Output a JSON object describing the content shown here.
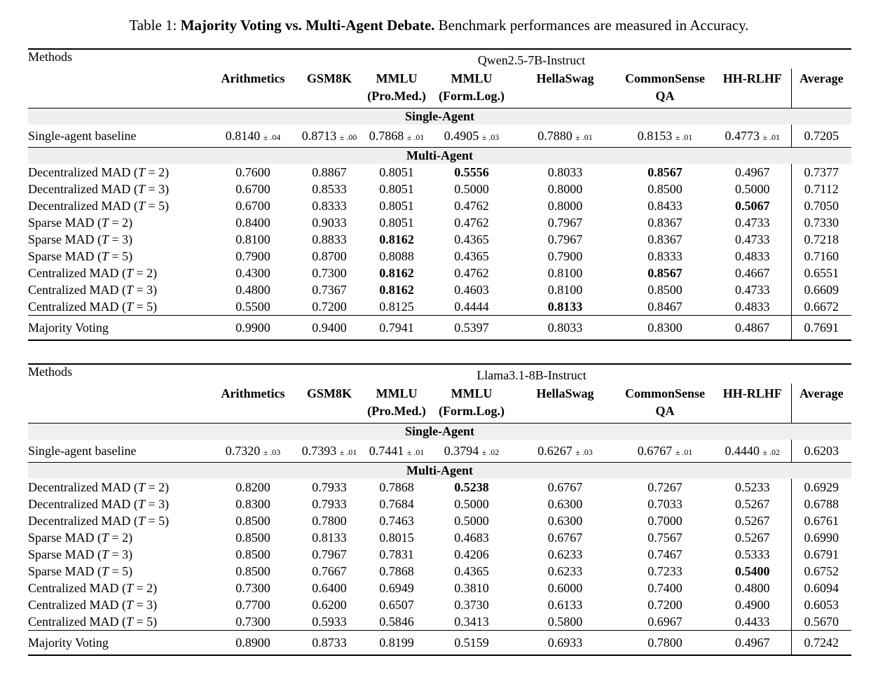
{
  "page": {
    "background": "#ffffff",
    "text_color": "#000000",
    "section_band_color": "#efefef"
  },
  "caption": {
    "prefix": "Table 1: ",
    "bold": "Majority Voting vs. Multi-Agent Debate.",
    "rest": " Benchmark performances are measured in Accuracy."
  },
  "header": {
    "methods_label": "Methods",
    "benchmarks": [
      [
        "Arithmetics"
      ],
      [
        "GSM8K"
      ],
      [
        "MMLU",
        "(Pro.Med.)"
      ],
      [
        "MMLU",
        "(Form.Log.)"
      ],
      [
        "HellaSwag"
      ],
      [
        "CommonSense",
        "QA"
      ],
      [
        "HH-RLHF"
      ]
    ],
    "average_label": "Average"
  },
  "section_labels": {
    "single_agent": "Single-Agent",
    "multi_agent": "Multi-Agent"
  },
  "tables": [
    {
      "model": "Qwen2.5-7B-Instruct",
      "baseline": {
        "label": "Single-agent baseline",
        "values": [
          {
            "v": "0.8140",
            "pm": "± .04"
          },
          {
            "v": "0.8713",
            "pm": "± .00"
          },
          {
            "v": "0.7868",
            "pm": "± .01"
          },
          {
            "v": "0.4905",
            "pm": "± .03"
          },
          {
            "v": "0.7880",
            "pm": "± .01"
          },
          {
            "v": "0.8153",
            "pm": "± .01"
          },
          {
            "v": "0.4773",
            "pm": "± .01"
          }
        ],
        "average": "0.7205"
      },
      "rows": [
        {
          "method": "Decentralized MAD",
          "t": "2",
          "values": [
            "0.7600",
            "0.8867",
            "0.8051",
            "0.5556",
            "0.8033",
            "0.8567",
            "0.4967"
          ],
          "bold": [
            3,
            5
          ],
          "average": "0.7377"
        },
        {
          "method": "Decentralized MAD",
          "t": "3",
          "values": [
            "0.6700",
            "0.8533",
            "0.8051",
            "0.5000",
            "0.8000",
            "0.8500",
            "0.5000"
          ],
          "bold": [],
          "average": "0.7112"
        },
        {
          "method": "Decentralized MAD",
          "t": "5",
          "values": [
            "0.6700",
            "0.8333",
            "0.8051",
            "0.4762",
            "0.8000",
            "0.8433",
            "0.5067"
          ],
          "bold": [
            6
          ],
          "average": "0.7050"
        },
        {
          "method": "Sparse MAD",
          "t": "2",
          "values": [
            "0.8400",
            "0.9033",
            "0.8051",
            "0.4762",
            "0.7967",
            "0.8367",
            "0.4733"
          ],
          "bold": [],
          "average": "0.7330"
        },
        {
          "method": "Sparse MAD",
          "t": "3",
          "values": [
            "0.8100",
            "0.8833",
            "0.8162",
            "0.4365",
            "0.7967",
            "0.8367",
            "0.4733"
          ],
          "bold": [
            2
          ],
          "average": "0.7218"
        },
        {
          "method": "Sparse MAD",
          "t": "5",
          "values": [
            "0.7900",
            "0.8700",
            "0.8088",
            "0.4365",
            "0.7900",
            "0.8333",
            "0.4833"
          ],
          "bold": [],
          "average": "0.7160"
        },
        {
          "method": "Centralized MAD",
          "t": "2",
          "values": [
            "0.4300",
            "0.7300",
            "0.8162",
            "0.4762",
            "0.8100",
            "0.8567",
            "0.4667"
          ],
          "bold": [
            2,
            5
          ],
          "average": "0.6551"
        },
        {
          "method": "Centralized MAD",
          "t": "3",
          "values": [
            "0.4800",
            "0.7367",
            "0.8162",
            "0.4603",
            "0.8100",
            "0.8500",
            "0.4733"
          ],
          "bold": [
            2
          ],
          "average": "0.6609"
        },
        {
          "method": "Centralized MAD",
          "t": "5",
          "values": [
            "0.5500",
            "0.7200",
            "0.8125",
            "0.4444",
            "0.8133",
            "0.8467",
            "0.4833"
          ],
          "bold": [
            4
          ],
          "average": "0.6672"
        }
      ],
      "majority": {
        "label": "Majority Voting",
        "values": [
          "0.9900",
          "0.9400",
          "0.7941",
          "0.5397",
          "0.8033",
          "0.8300",
          "0.4867"
        ],
        "bold": [
          0,
          1
        ],
        "average": "0.7691",
        "average_bold": true
      }
    },
    {
      "model": "Llama3.1-8B-Instruct",
      "baseline": {
        "label": "Single-agent baseline",
        "values": [
          {
            "v": "0.7320",
            "pm": "± .03"
          },
          {
            "v": "0.7393",
            "pm": "± .01"
          },
          {
            "v": "0.7441",
            "pm": "± .01"
          },
          {
            "v": "0.3794",
            "pm": "± .02"
          },
          {
            "v": "0.6267",
            "pm": "± .03"
          },
          {
            "v": "0.6767",
            "pm": "± .01"
          },
          {
            "v": "0.4440",
            "pm": "± .02"
          }
        ],
        "average": "0.6203"
      },
      "rows": [
        {
          "method": "Decentralized MAD",
          "t": "2",
          "values": [
            "0.8200",
            "0.7933",
            "0.7868",
            "0.5238",
            "0.6767",
            "0.7267",
            "0.5233"
          ],
          "bold": [
            3
          ],
          "average": "0.6929"
        },
        {
          "method": "Decentralized MAD",
          "t": "3",
          "values": [
            "0.8300",
            "0.7933",
            "0.7684",
            "0.5000",
            "0.6300",
            "0.7033",
            "0.5267"
          ],
          "bold": [],
          "average": "0.6788"
        },
        {
          "method": "Decentralized MAD",
          "t": "5",
          "values": [
            "0.8500",
            "0.7800",
            "0.7463",
            "0.5000",
            "0.6300",
            "0.7000",
            "0.5267"
          ],
          "bold": [],
          "average": "0.6761"
        },
        {
          "method": "Sparse MAD",
          "t": "2",
          "values": [
            "0.8500",
            "0.8133",
            "0.8015",
            "0.4683",
            "0.6767",
            "0.7567",
            "0.5267"
          ],
          "bold": [],
          "average": "0.6990"
        },
        {
          "method": "Sparse MAD",
          "t": "3",
          "values": [
            "0.8500",
            "0.7967",
            "0.7831",
            "0.4206",
            "0.6233",
            "0.7467",
            "0.5333"
          ],
          "bold": [],
          "average": "0.6791"
        },
        {
          "method": "Sparse MAD",
          "t": "5",
          "values": [
            "0.8500",
            "0.7667",
            "0.7868",
            "0.4365",
            "0.6233",
            "0.7233",
            "0.5400"
          ],
          "bold": [
            6
          ],
          "average": "0.6752"
        },
        {
          "method": "Centralized MAD",
          "t": "2",
          "values": [
            "0.7300",
            "0.6400",
            "0.6949",
            "0.3810",
            "0.6000",
            "0.7400",
            "0.4800"
          ],
          "bold": [],
          "average": "0.6094"
        },
        {
          "method": "Centralized MAD",
          "t": "3",
          "values": [
            "0.7700",
            "0.6200",
            "0.6507",
            "0.3730",
            "0.6133",
            "0.7200",
            "0.4900"
          ],
          "bold": [],
          "average": "0.6053"
        },
        {
          "method": "Centralized MAD",
          "t": "5",
          "values": [
            "0.7300",
            "0.5933",
            "0.5846",
            "0.3413",
            "0.5800",
            "0.6967",
            "0.4433"
          ],
          "bold": [],
          "average": "0.5670"
        }
      ],
      "majority": {
        "label": "Majority Voting",
        "values": [
          "0.8900",
          "0.8733",
          "0.8199",
          "0.5159",
          "0.6933",
          "0.7800",
          "0.4967"
        ],
        "bold": [
          0,
          1,
          2,
          4,
          5
        ],
        "average": "0.7242",
        "average_bold": true
      }
    }
  ]
}
